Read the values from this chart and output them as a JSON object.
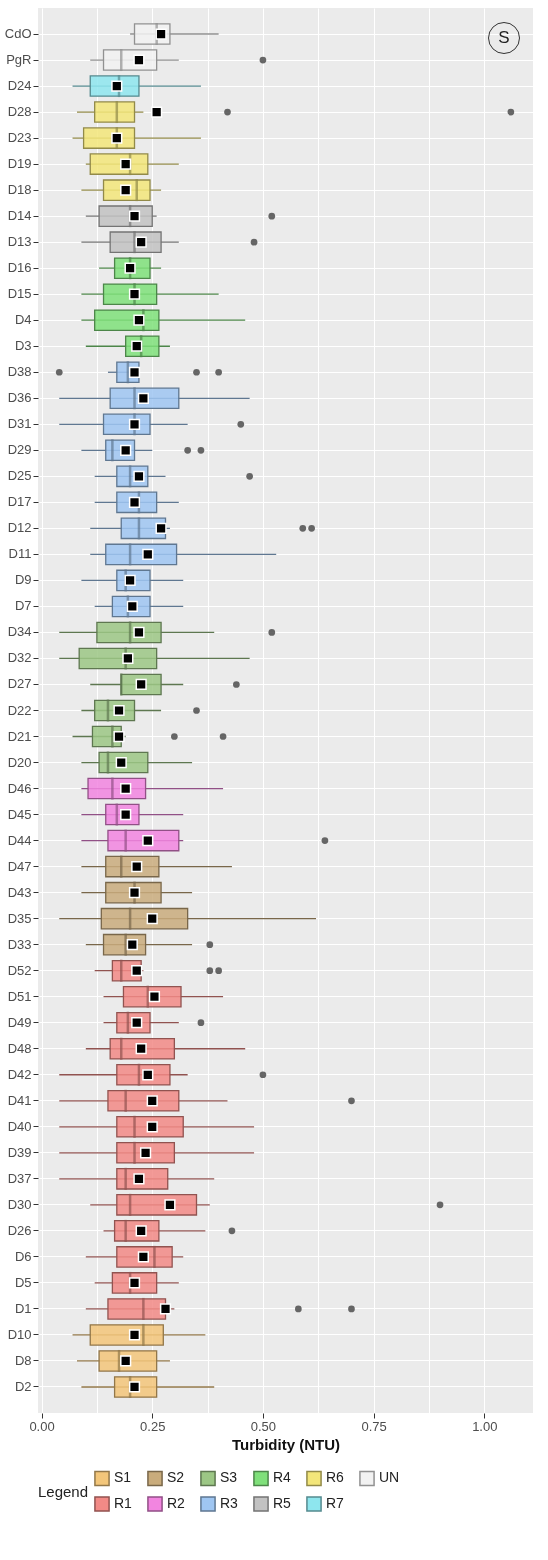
{
  "chart_data": {
    "type": "box",
    "orientation": "horizontal",
    "xlabel": "Turbidity (NTU)",
    "legend_title": "Legend",
    "legend": "bottom",
    "grid": true,
    "annotations": [
      "S"
    ],
    "xlim": [
      -0.008,
      1.11
    ],
    "xticks": [
      {
        "value": 0,
        "label": "0.00"
      },
      {
        "value": 0.125,
        "label": null
      },
      {
        "value": 0.25,
        "label": "0.25"
      },
      {
        "value": 0.375,
        "label": null
      },
      {
        "value": 0.5,
        "label": "0.50"
      },
      {
        "value": 0.625,
        "label": null
      },
      {
        "value": 0.75,
        "label": "0.75"
      },
      {
        "value": 0.875,
        "label": null
      },
      {
        "value": 1,
        "label": "1.00"
      }
    ],
    "categories": [
      "CdO",
      "PgR",
      "D24",
      "D28",
      "D23",
      "D19",
      "D18",
      "D14",
      "D13",
      "D16",
      "D15",
      "D4",
      "D3",
      "D38",
      "D36",
      "D31",
      "D29",
      "D25",
      "D17",
      "D12",
      "D11",
      "D9",
      "D7",
      "D34",
      "D32",
      "D27",
      "D22",
      "D21",
      "D20",
      "D46",
      "D45",
      "D44",
      "D47",
      "D43",
      "D35",
      "D33",
      "D52",
      "D51",
      "D49",
      "D48",
      "D42",
      "D41",
      "D40",
      "D39",
      "D37",
      "D30",
      "D26",
      "D6",
      "D5",
      "D1",
      "D10",
      "D8",
      "D2"
    ],
    "series": [
      {
        "name": "S1",
        "color": "#f3c67a",
        "boxes": [
          null,
          null,
          null,
          null,
          null,
          null,
          null,
          null,
          null,
          null,
          null,
          null,
          null,
          null,
          null,
          null,
          null,
          null,
          null,
          null,
          null,
          null,
          null,
          null,
          null,
          null,
          null,
          null,
          null,
          null,
          null,
          null,
          null,
          null,
          null,
          null,
          null,
          null,
          null,
          null,
          null,
          null,
          null,
          null,
          null,
          null,
          null,
          null,
          null,
          null,
          {
            "low": 0.07,
            "q1": 0.11,
            "median": 0.23,
            "q3": 0.275,
            "high": 0.37,
            "mean": 0.21
          },
          {
            "low": 0.08,
            "q1": 0.13,
            "median": 0.175,
            "q3": 0.26,
            "high": 0.29,
            "mean": 0.19
          },
          {
            "low": 0.09,
            "q1": 0.165,
            "median": 0.2,
            "q3": 0.26,
            "high": 0.39,
            "mean": 0.21
          }
        ]
      },
      {
        "name": "S2",
        "color": "#c9ac7c",
        "boxes": [
          null,
          null,
          null,
          null,
          null,
          null,
          null,
          null,
          null,
          null,
          null,
          null,
          null,
          null,
          null,
          null,
          null,
          null,
          null,
          null,
          null,
          null,
          null,
          null,
          null,
          null,
          null,
          null,
          null,
          null,
          null,
          null,
          {
            "low": 0.09,
            "q1": 0.145,
            "median": 0.18,
            "q3": 0.265,
            "high": 0.43,
            "mean": 0.215
          },
          {
            "low": 0.09,
            "q1": 0.145,
            "median": 0.21,
            "q3": 0.27,
            "high": 0.34,
            "mean": 0.21
          },
          {
            "low": 0.04,
            "q1": 0.135,
            "median": 0.2,
            "q3": 0.33,
            "high": 0.62,
            "mean": 0.25
          },
          {
            "low": 0.1,
            "q1": 0.14,
            "median": 0.19,
            "q3": 0.235,
            "high": 0.34,
            "mean": 0.205,
            "outliers": [
              0.38
            ]
          },
          null,
          null,
          null,
          null,
          null,
          null,
          null,
          null,
          null,
          null,
          null,
          null,
          null,
          null,
          null,
          null,
          null
        ]
      },
      {
        "name": "S3",
        "color": "#9cc785",
        "boxes": [
          null,
          null,
          null,
          null,
          null,
          null,
          null,
          null,
          null,
          null,
          null,
          null,
          null,
          null,
          null,
          null,
          null,
          null,
          null,
          null,
          null,
          null,
          null,
          {
            "low": 0.04,
            "q1": 0.125,
            "median": 0.2,
            "q3": 0.27,
            "high": 0.39,
            "mean": 0.22,
            "outliers": [
              0.52
            ]
          },
          {
            "low": 0.04,
            "q1": 0.085,
            "median": 0.19,
            "q3": 0.26,
            "high": 0.47,
            "mean": 0.195
          },
          {
            "low": 0.11,
            "q1": 0.18,
            "median": 0.18,
            "q3": 0.27,
            "high": 0.32,
            "mean": 0.225,
            "outliers": [
              0.44
            ]
          },
          {
            "low": 0.09,
            "q1": 0.12,
            "median": 0.15,
            "q3": 0.21,
            "high": 0.27,
            "mean": 0.175,
            "outliers": [
              0.35
            ]
          },
          {
            "low": 0.07,
            "q1": 0.115,
            "median": 0.16,
            "q3": 0.18,
            "high": 0.19,
            "mean": 0.175,
            "outliers": [
              0.3,
              0.41
            ]
          },
          {
            "low": 0.09,
            "q1": 0.13,
            "median": 0.15,
            "q3": 0.24,
            "high": 0.34,
            "mean": 0.18
          },
          null,
          null,
          null,
          null,
          null,
          null,
          null,
          null,
          null,
          null,
          null,
          null,
          null,
          null,
          null,
          null,
          null,
          null,
          null,
          null,
          null,
          null,
          null,
          null
        ]
      },
      {
        "name": "R4",
        "color": "#7fe07a",
        "boxes": [
          null,
          null,
          null,
          null,
          null,
          null,
          null,
          null,
          null,
          {
            "low": 0.13,
            "q1": 0.165,
            "median": 0.2,
            "q3": 0.245,
            "high": 0.27,
            "mean": 0.2
          },
          {
            "low": 0.09,
            "q1": 0.14,
            "median": 0.21,
            "q3": 0.26,
            "high": 0.4,
            "mean": 0.21
          },
          {
            "low": 0.09,
            "q1": 0.12,
            "median": 0.23,
            "q3": 0.265,
            "high": 0.46,
            "mean": 0.22
          },
          {
            "low": 0.1,
            "q1": 0.19,
            "median": 0.225,
            "q3": 0.265,
            "high": 0.29,
            "mean": 0.215
          },
          null,
          null,
          null,
          null,
          null,
          null,
          null,
          null,
          null,
          null,
          null,
          null,
          null,
          null,
          null,
          null,
          null,
          null,
          null,
          null,
          null,
          null,
          null,
          null,
          null,
          null,
          null,
          null,
          null,
          null,
          null,
          null,
          null,
          null,
          null,
          null,
          null,
          null,
          null,
          null
        ]
      },
      {
        "name": "R6",
        "color": "#f3e67a",
        "boxes": [
          null,
          null,
          null,
          {
            "low": 0.08,
            "q1": 0.12,
            "median": 0.17,
            "q3": 0.21,
            "high": 0.23,
            "mean": 0.26,
            "outliers": [
              0.42,
              1.06
            ]
          },
          {
            "low": 0.07,
            "q1": 0.095,
            "median": 0.17,
            "q3": 0.21,
            "high": 0.36,
            "mean": 0.17
          },
          {
            "low": 0.1,
            "q1": 0.11,
            "median": 0.2,
            "q3": 0.24,
            "high": 0.31,
            "mean": 0.19
          },
          {
            "low": 0.09,
            "q1": 0.14,
            "median": 0.215,
            "q3": 0.245,
            "high": 0.27,
            "mean": 0.19
          },
          null,
          null,
          null,
          null,
          null,
          null,
          null,
          null,
          null,
          null,
          null,
          null,
          null,
          null,
          null,
          null,
          null,
          null,
          null,
          null,
          null,
          null,
          null,
          null,
          null,
          null,
          null,
          null,
          null,
          null,
          null,
          null,
          null,
          null,
          null,
          null,
          null,
          null,
          null,
          null,
          null,
          null,
          null,
          null,
          null,
          null
        ]
      },
      {
        "name": "UN",
        "color": "#f2f2f2",
        "boxes": [
          {
            "low": 0.2,
            "q1": 0.21,
            "median": 0.26,
            "q3": 0.29,
            "high": 0.4,
            "mean": 0.27
          },
          {
            "low": 0.11,
            "q1": 0.14,
            "median": 0.18,
            "q3": 0.26,
            "high": 0.31,
            "mean": 0.22,
            "outliers": [
              0.5
            ]
          },
          null,
          null,
          null,
          null,
          null,
          null,
          null,
          null,
          null,
          null,
          null,
          null,
          null,
          null,
          null,
          null,
          null,
          null,
          null,
          null,
          null,
          null,
          null,
          null,
          null,
          null,
          null,
          null,
          null,
          null,
          null,
          null,
          null,
          null,
          null,
          null,
          null,
          null,
          null,
          null,
          null,
          null,
          null,
          null,
          null,
          null,
          null,
          null,
          null,
          null,
          null
        ]
      },
      {
        "name": "R1",
        "color": "#f28a86",
        "boxes": [
          null,
          null,
          null,
          null,
          null,
          null,
          null,
          null,
          null,
          null,
          null,
          null,
          null,
          null,
          null,
          null,
          null,
          null,
          null,
          null,
          null,
          null,
          null,
          null,
          null,
          null,
          null,
          null,
          null,
          null,
          null,
          null,
          null,
          null,
          null,
          null,
          {
            "low": 0.12,
            "q1": 0.16,
            "median": 0.18,
            "q3": 0.225,
            "high": 0.23,
            "mean": 0.215,
            "outliers": [
              0.38,
              0.4
            ]
          },
          {
            "low": 0.14,
            "q1": 0.185,
            "median": 0.24,
            "q3": 0.315,
            "high": 0.41,
            "mean": 0.255
          },
          {
            "low": 0.14,
            "q1": 0.17,
            "median": 0.195,
            "q3": 0.245,
            "high": 0.31,
            "mean": 0.215,
            "outliers": [
              0.36
            ]
          },
          {
            "low": 0.1,
            "q1": 0.155,
            "median": 0.18,
            "q3": 0.3,
            "high": 0.46,
            "mean": 0.225
          },
          {
            "low": 0.04,
            "q1": 0.17,
            "median": 0.22,
            "q3": 0.29,
            "high": 0.33,
            "mean": 0.24,
            "outliers": [
              0.5
            ]
          },
          {
            "low": 0.04,
            "q1": 0.15,
            "median": 0.19,
            "q3": 0.31,
            "high": 0.42,
            "mean": 0.25,
            "outliers": [
              0.7
            ]
          },
          {
            "low": 0.04,
            "q1": 0.17,
            "median": 0.21,
            "q3": 0.32,
            "high": 0.48,
            "mean": 0.25
          },
          {
            "low": 0.04,
            "q1": 0.17,
            "median": 0.21,
            "q3": 0.3,
            "high": 0.48,
            "mean": 0.235
          },
          {
            "low": 0.04,
            "q1": 0.17,
            "median": 0.19,
            "q3": 0.285,
            "high": 0.39,
            "mean": 0.22
          },
          {
            "low": 0.11,
            "q1": 0.17,
            "median": 0.2,
            "q3": 0.35,
            "high": 0.38,
            "mean": 0.29,
            "outliers": [
              0.9
            ]
          },
          {
            "low": 0.14,
            "q1": 0.165,
            "median": 0.19,
            "q3": 0.265,
            "high": 0.37,
            "mean": 0.225,
            "outliers": [
              0.43
            ]
          },
          {
            "low": 0.1,
            "q1": 0.17,
            "median": 0.255,
            "q3": 0.295,
            "high": 0.32,
            "mean": 0.23
          },
          {
            "low": 0.12,
            "q1": 0.16,
            "median": 0.2,
            "q3": 0.26,
            "high": 0.31,
            "mean": 0.21
          },
          {
            "low": 0.1,
            "q1": 0.15,
            "median": 0.23,
            "q3": 0.28,
            "high": 0.3,
            "mean": 0.28,
            "outliers": [
              0.58,
              0.7
            ]
          },
          null,
          null,
          null
        ]
      },
      {
        "name": "R2",
        "color": "#f285e0",
        "boxes": [
          null,
          null,
          null,
          null,
          null,
          null,
          null,
          null,
          null,
          null,
          null,
          null,
          null,
          null,
          null,
          null,
          null,
          null,
          null,
          null,
          null,
          null,
          null,
          null,
          null,
          null,
          null,
          null,
          null,
          {
            "low": 0.09,
            "q1": 0.105,
            "median": 0.16,
            "q3": 0.235,
            "high": 0.41,
            "mean": 0.19
          },
          {
            "low": 0.09,
            "q1": 0.145,
            "median": 0.17,
            "q3": 0.22,
            "high": 0.32,
            "mean": 0.19
          },
          {
            "low": 0.09,
            "q1": 0.15,
            "median": 0.19,
            "q3": 0.31,
            "high": 0.32,
            "mean": 0.24,
            "outliers": [
              0.64
            ]
          },
          null,
          null,
          null,
          null,
          null,
          null,
          null,
          null,
          null,
          null,
          null,
          null,
          null,
          null,
          null,
          null,
          null,
          null,
          null,
          null,
          null
        ]
      },
      {
        "name": "R3",
        "color": "#9fc6f2",
        "boxes": [
          null,
          null,
          null,
          null,
          null,
          null,
          null,
          null,
          null,
          null,
          null,
          null,
          null,
          {
            "low": 0.15,
            "q1": 0.17,
            "median": 0.195,
            "q3": 0.22,
            "high": 0.22,
            "mean": 0.21,
            "outliers": [
              0.04,
              0.35,
              0.4
            ]
          },
          {
            "low": 0.04,
            "q1": 0.155,
            "median": 0.21,
            "q3": 0.31,
            "high": 0.47,
            "mean": 0.23
          },
          {
            "low": 0.04,
            "q1": 0.14,
            "median": 0.21,
            "q3": 0.245,
            "high": 0.33,
            "mean": 0.21,
            "outliers": [
              0.45
            ]
          },
          {
            "low": 0.09,
            "q1": 0.145,
            "median": 0.16,
            "q3": 0.21,
            "high": 0.25,
            "mean": 0.19,
            "outliers": [
              0.33,
              0.36
            ]
          },
          {
            "low": 0.12,
            "q1": 0.17,
            "median": 0.2,
            "q3": 0.24,
            "high": 0.28,
            "mean": 0.22,
            "outliers": [
              0.47
            ]
          },
          {
            "low": 0.12,
            "q1": 0.17,
            "median": 0.22,
            "q3": 0.26,
            "high": 0.31,
            "mean": 0.21
          },
          {
            "low": 0.11,
            "q1": 0.18,
            "median": 0.22,
            "q3": 0.28,
            "high": 0.29,
            "mean": 0.27,
            "outliers": [
              0.59,
              0.61
            ]
          },
          {
            "low": 0.11,
            "q1": 0.145,
            "median": 0.2,
            "q3": 0.305,
            "high": 0.53,
            "mean": 0.24
          },
          {
            "low": 0.09,
            "q1": 0.17,
            "median": 0.19,
            "q3": 0.245,
            "high": 0.32,
            "mean": 0.2
          },
          {
            "low": 0.12,
            "q1": 0.16,
            "median": 0.195,
            "q3": 0.245,
            "high": 0.32,
            "mean": 0.205
          },
          null,
          null,
          null,
          null,
          null,
          null,
          null,
          null,
          null,
          null,
          null,
          null,
          null,
          null,
          null,
          null,
          null,
          null,
          null,
          null,
          null,
          null,
          null,
          null,
          null,
          null,
          null,
          null,
          null,
          null
        ]
      },
      {
        "name": "R5",
        "color": "#c2c2c2",
        "boxes": [
          null,
          null,
          null,
          null,
          null,
          null,
          null,
          {
            "low": 0.1,
            "q1": 0.13,
            "median": 0.2,
            "q3": 0.25,
            "high": 0.26,
            "mean": 0.21,
            "outliers": [
              0.52
            ]
          },
          {
            "low": 0.09,
            "q1": 0.155,
            "median": 0.21,
            "q3": 0.27,
            "high": 0.31,
            "mean": 0.225,
            "outliers": [
              0.48
            ]
          },
          null,
          null,
          null,
          null,
          null,
          null,
          null,
          null,
          null,
          null,
          null,
          null,
          null,
          null,
          null,
          null,
          null,
          null,
          null,
          null,
          null,
          null,
          null,
          null,
          null,
          null,
          null,
          null,
          null,
          null,
          null,
          null,
          null,
          null,
          null,
          null,
          null,
          null,
          null,
          null,
          null,
          null,
          null,
          null
        ]
      },
      {
        "name": "R7",
        "color": "#8ee6ee",
        "boxes": [
          null,
          null,
          {
            "low": 0.07,
            "q1": 0.11,
            "median": 0.175,
            "q3": 0.22,
            "high": 0.36,
            "mean": 0.17
          },
          null,
          null,
          null,
          null,
          null,
          null,
          null,
          null,
          null,
          null,
          null,
          null,
          null,
          null,
          null,
          null,
          null,
          null,
          null,
          null,
          null,
          null,
          null,
          null,
          null,
          null,
          null,
          null,
          null,
          null,
          null,
          null,
          null,
          null,
          null,
          null,
          null,
          null,
          null,
          null,
          null,
          null,
          null,
          null,
          null,
          null,
          null,
          null,
          null,
          null
        ]
      }
    ]
  }
}
